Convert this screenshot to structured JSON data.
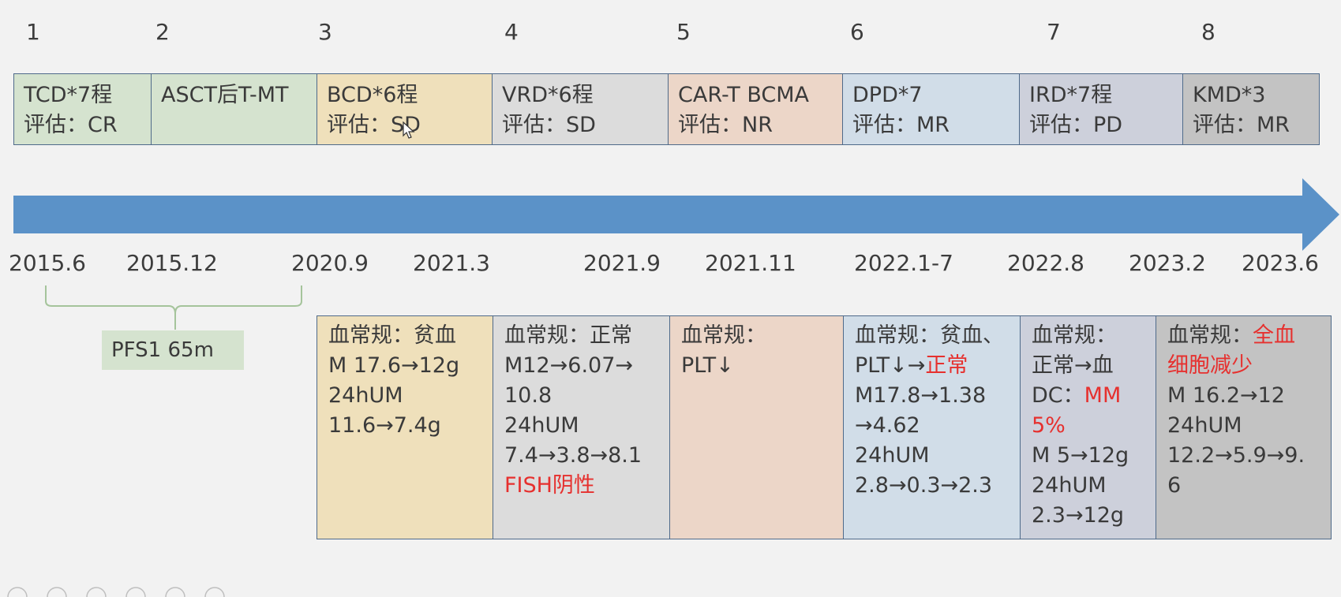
{
  "step_numbers": [
    "1",
    "2",
    "3",
    "4",
    "5",
    "6",
    "7",
    "8"
  ],
  "treatments": [
    {
      "line1": "TCD*7程",
      "line2": "评估：CR",
      "color": "#d5e3cf"
    },
    {
      "line1": "ASCT后T-MT",
      "line2": "",
      "color": "#d5e3cf"
    },
    {
      "line1": "BCD*6程",
      "line2": "评估：SD",
      "color": "#efe0bb"
    },
    {
      "line1": "VRD*6程",
      "line2": "评估：SD",
      "color": "#dcdcdc"
    },
    {
      "line1": "CAR-T BCMA",
      "line2": "评估：NR",
      "color": "#ecd6c8"
    },
    {
      "line1": "DPD*7",
      "line2": "评估：MR",
      "color": "#d1dde8"
    },
    {
      "line1": "IRD*7程",
      "line2": "评估：PD",
      "color": "#cdd0db"
    },
    {
      "line1": "KMD*3",
      "line2": "评估：MR",
      "color": "#c3c3c3"
    }
  ],
  "dates": [
    "2015.6",
    "2015.12",
    "2020.9",
    "2021.3",
    "2021.9",
    "2021.11",
    "2022.1-7",
    "2022.8",
    "2023.2",
    "2023.6"
  ],
  "pfs_label": "PFS1 65m",
  "arrow_color": "#5b92c8",
  "accent_red": "#e6302e",
  "lab_results": [
    {
      "color": "#efe0bb",
      "lines": [
        {
          "t": "血常规：贫血"
        },
        {
          "t": "M 17.6→12g"
        },
        {
          "t": "24hUM"
        },
        {
          "t": "11.6→7.4g"
        }
      ]
    },
    {
      "color": "#dcdcdc",
      "lines": [
        {
          "t": "血常规：正常"
        },
        {
          "t": "M12→6.07→"
        },
        {
          "t": "10.8"
        },
        {
          "t": "24hUM"
        },
        {
          "t": "7.4→3.8→8.1"
        },
        {
          "t": "FISH阴性",
          "red": true
        }
      ]
    },
    {
      "color": "#ecd6c8",
      "lines": [
        {
          "t": "血常规："
        },
        {
          "t": "PLT↓"
        }
      ]
    },
    {
      "color": "#d1dde8",
      "lines": [
        {
          "t": "血常规：贫血、"
        },
        {
          "t": "PLT↓→",
          "red_tail": "正常"
        },
        {
          "t": "M17.8→1.38"
        },
        {
          "t": "→4.62"
        },
        {
          "t": "24hUM"
        },
        {
          "t": "2.8→0.3→2.3"
        }
      ]
    },
    {
      "color": "#cdd0db",
      "lines": [
        {
          "t": "血常规："
        },
        {
          "t": "正常→血"
        },
        {
          "t": "DC：",
          "red_tail": "MM"
        },
        {
          "t": "5%",
          "red": true
        },
        {
          "t": "M 5→12g"
        },
        {
          "t": "24hUM"
        },
        {
          "t": "2.3→12g"
        }
      ]
    },
    {
      "color": "#c3c3c3",
      "lines": [
        {
          "t": "血常规：",
          "red_tail": "全血"
        },
        {
          "t": "细胞减少",
          "red": true
        },
        {
          "t": "M 16.2→12"
        },
        {
          "t": "24hUM"
        },
        {
          "t": "12.2→5.9→9."
        },
        {
          "t": "6"
        }
      ]
    }
  ]
}
